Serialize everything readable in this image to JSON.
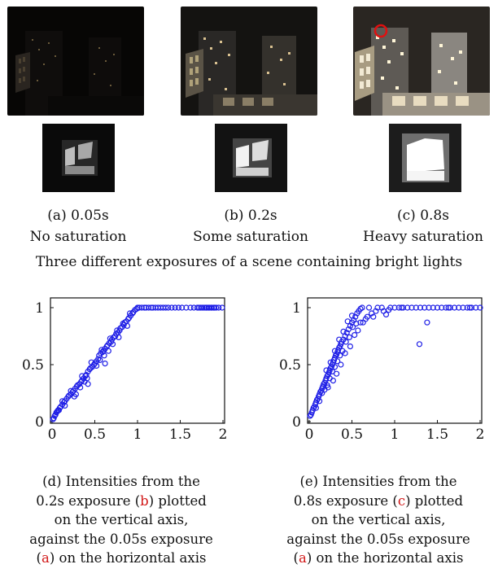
{
  "panels": [
    {
      "label": "(a) 0.05s",
      "desc": "No saturation"
    },
    {
      "label": "(b) 0.2s",
      "desc": "Some saturation"
    },
    {
      "label": "(c) 0.8s",
      "desc": "Heavy saturation"
    }
  ],
  "figure_caption": "Three different exposures of a scene containing bright lights",
  "captions": {
    "d": {
      "pre": "(d) Intensities from the 0.2s exposure (",
      "ref1": "b",
      "mid": ") plotted on the vertical axis, against the 0.05s exposure (",
      "ref2": "a",
      "post": ") on the horizontal axis"
    },
    "e": {
      "pre": "(e) Intensities from the 0.8s exposure (",
      "ref1": "c",
      "mid": ") plotted on the vertical axis, against the 0.05s exposure (",
      "ref2": "a",
      "post": ") on the horizontal axis"
    }
  },
  "colors": {
    "marker": "#1f1fe6",
    "reference": "#d21a1a",
    "highlight_circle": "#e01010"
  },
  "chart_data": [
    {
      "type": "scatter",
      "title": "",
      "xlabel": "",
      "ylabel": "",
      "xlim": [
        0,
        2
      ],
      "ylim": [
        0,
        1
      ],
      "xticks": [
        "0",
        "0.5",
        "1",
        "1.5",
        "2"
      ],
      "yticks": [
        "0",
        "0.5",
        "1"
      ],
      "points": [
        [
          0.01,
          0.02
        ],
        [
          0.02,
          0.03
        ],
        [
          0.03,
          0.05
        ],
        [
          0.04,
          0.06
        ],
        [
          0.05,
          0.08
        ],
        [
          0.06,
          0.09
        ],
        [
          0.07,
          0.1
        ],
        [
          0.08,
          0.1
        ],
        [
          0.09,
          0.12
        ],
        [
          0.1,
          0.13
        ],
        [
          0.12,
          0.15
        ],
        [
          0.14,
          0.17
        ],
        [
          0.15,
          0.18
        ],
        [
          0.17,
          0.2
        ],
        [
          0.19,
          0.22
        ],
        [
          0.2,
          0.23
        ],
        [
          0.22,
          0.24
        ],
        [
          0.24,
          0.26
        ],
        [
          0.25,
          0.27
        ],
        [
          0.27,
          0.29
        ],
        [
          0.29,
          0.31
        ],
        [
          0.3,
          0.32
        ],
        [
          0.32,
          0.33
        ],
        [
          0.34,
          0.35
        ],
        [
          0.35,
          0.36
        ],
        [
          0.37,
          0.38
        ],
        [
          0.39,
          0.4
        ],
        [
          0.4,
          0.41
        ],
        [
          0.42,
          0.44
        ],
        [
          0.44,
          0.46
        ],
        [
          0.45,
          0.47
        ],
        [
          0.47,
          0.48
        ],
        [
          0.49,
          0.5
        ],
        [
          0.5,
          0.51
        ],
        [
          0.52,
          0.53
        ],
        [
          0.54,
          0.55
        ],
        [
          0.55,
          0.58
        ],
        [
          0.57,
          0.6
        ],
        [
          0.59,
          0.61
        ],
        [
          0.6,
          0.62
        ],
        [
          0.62,
          0.64
        ],
        [
          0.64,
          0.66
        ],
        [
          0.65,
          0.67
        ],
        [
          0.67,
          0.69
        ],
        [
          0.69,
          0.7
        ],
        [
          0.7,
          0.72
        ],
        [
          0.72,
          0.74
        ],
        [
          0.74,
          0.75
        ],
        [
          0.75,
          0.77
        ],
        [
          0.77,
          0.78
        ],
        [
          0.79,
          0.8
        ],
        [
          0.8,
          0.82
        ],
        [
          0.82,
          0.83
        ],
        [
          0.84,
          0.85
        ],
        [
          0.85,
          0.87
        ],
        [
          0.87,
          0.88
        ],
        [
          0.89,
          0.9
        ],
        [
          0.9,
          0.91
        ],
        [
          0.92,
          0.93
        ],
        [
          0.94,
          0.95
        ],
        [
          0.95,
          0.96
        ],
        [
          0.97,
          0.98
        ],
        [
          0.99,
          0.99
        ],
        [
          1.0,
          1.0
        ],
        [
          0.15,
          0.14
        ],
        [
          0.22,
          0.27
        ],
        [
          0.28,
          0.24
        ],
        [
          0.33,
          0.3
        ],
        [
          0.38,
          0.35
        ],
        [
          0.41,
          0.38
        ],
        [
          0.46,
          0.52
        ],
        [
          0.52,
          0.49
        ],
        [
          0.56,
          0.54
        ],
        [
          0.58,
          0.63
        ],
        [
          0.61,
          0.58
        ],
        [
          0.66,
          0.62
        ],
        [
          0.68,
          0.73
        ],
        [
          0.71,
          0.68
        ],
        [
          0.76,
          0.8
        ],
        [
          0.78,
          0.74
        ],
        [
          0.83,
          0.86
        ],
        [
          0.88,
          0.84
        ],
        [
          0.91,
          0.95
        ],
        [
          0.62,
          0.51
        ],
        [
          0.42,
          0.33
        ],
        [
          0.35,
          0.4
        ],
        [
          0.26,
          0.22
        ],
        [
          0.12,
          0.18
        ],
        [
          1.02,
          1.0
        ],
        [
          1.05,
          1.0
        ],
        [
          1.08,
          1.0
        ],
        [
          1.1,
          1.0
        ],
        [
          1.13,
          1.0
        ],
        [
          1.16,
          1.0
        ],
        [
          1.18,
          1.0
        ],
        [
          1.21,
          1.0
        ],
        [
          1.24,
          1.0
        ],
        [
          1.27,
          1.0
        ],
        [
          1.3,
          1.0
        ],
        [
          1.33,
          1.0
        ],
        [
          1.36,
          1.0
        ],
        [
          1.4,
          1.0
        ],
        [
          1.44,
          1.0
        ],
        [
          1.48,
          1.0
        ],
        [
          1.52,
          1.0
        ],
        [
          1.57,
          1.0
        ],
        [
          1.62,
          1.0
        ],
        [
          1.66,
          1.0
        ],
        [
          1.7,
          1.0
        ],
        [
          1.72,
          1.0
        ],
        [
          1.74,
          1.0
        ],
        [
          1.76,
          1.0
        ],
        [
          1.78,
          1.0
        ],
        [
          1.8,
          1.0
        ],
        [
          1.81,
          1.0
        ],
        [
          1.83,
          1.0
        ],
        [
          1.84,
          1.0
        ],
        [
          1.86,
          1.0
        ],
        [
          1.87,
          1.0
        ],
        [
          1.89,
          1.0
        ],
        [
          1.9,
          1.0
        ],
        [
          1.92,
          1.0
        ],
        [
          1.95,
          1.0
        ],
        [
          1.99,
          1.0
        ]
      ]
    },
    {
      "type": "scatter",
      "title": "",
      "xlabel": "",
      "ylabel": "",
      "xlim": [
        0,
        2
      ],
      "ylim": [
        0,
        1
      ],
      "xticks": [
        "0",
        "0.5",
        "1",
        "1.5",
        "2"
      ],
      "yticks": [
        "0",
        "0.5",
        "1"
      ],
      "points": [
        [
          0.01,
          0.05
        ],
        [
          0.02,
          0.06
        ],
        [
          0.03,
          0.08
        ],
        [
          0.04,
          0.1
        ],
        [
          0.05,
          0.12
        ],
        [
          0.06,
          0.13
        ],
        [
          0.07,
          0.15
        ],
        [
          0.08,
          0.17
        ],
        [
          0.09,
          0.19
        ],
        [
          0.1,
          0.2
        ],
        [
          0.11,
          0.22
        ],
        [
          0.12,
          0.24
        ],
        [
          0.13,
          0.26
        ],
        [
          0.14,
          0.27
        ],
        [
          0.15,
          0.29
        ],
        [
          0.16,
          0.31
        ],
        [
          0.17,
          0.33
        ],
        [
          0.18,
          0.34
        ],
        [
          0.19,
          0.36
        ],
        [
          0.2,
          0.38
        ],
        [
          0.21,
          0.4
        ],
        [
          0.22,
          0.41
        ],
        [
          0.23,
          0.43
        ],
        [
          0.24,
          0.45
        ],
        [
          0.25,
          0.47
        ],
        [
          0.26,
          0.48
        ],
        [
          0.27,
          0.5
        ],
        [
          0.28,
          0.52
        ],
        [
          0.29,
          0.54
        ],
        [
          0.3,
          0.56
        ],
        [
          0.31,
          0.58
        ],
        [
          0.32,
          0.59
        ],
        [
          0.33,
          0.61
        ],
        [
          0.34,
          0.63
        ],
        [
          0.35,
          0.65
        ],
        [
          0.36,
          0.66
        ],
        [
          0.37,
          0.68
        ],
        [
          0.38,
          0.7
        ],
        [
          0.4,
          0.72
        ],
        [
          0.42,
          0.75
        ],
        [
          0.44,
          0.78
        ],
        [
          0.46,
          0.81
        ],
        [
          0.48,
          0.84
        ],
        [
          0.5,
          0.87
        ],
        [
          0.52,
          0.89
        ],
        [
          0.54,
          0.92
        ],
        [
          0.56,
          0.95
        ],
        [
          0.58,
          0.97
        ],
        [
          0.6,
          0.99
        ],
        [
          0.62,
          1.0
        ],
        [
          0.08,
          0.12
        ],
        [
          0.12,
          0.18
        ],
        [
          0.15,
          0.25
        ],
        [
          0.18,
          0.28
        ],
        [
          0.21,
          0.32
        ],
        [
          0.24,
          0.38
        ],
        [
          0.27,
          0.44
        ],
        [
          0.3,
          0.48
        ],
        [
          0.33,
          0.53
        ],
        [
          0.36,
          0.58
        ],
        [
          0.39,
          0.62
        ],
        [
          0.43,
          0.7
        ],
        [
          0.47,
          0.74
        ],
        [
          0.51,
          0.83
        ],
        [
          0.55,
          0.86
        ],
        [
          0.2,
          0.45
        ],
        [
          0.25,
          0.52
        ],
        [
          0.3,
          0.62
        ],
        [
          0.35,
          0.72
        ],
        [
          0.4,
          0.79
        ],
        [
          0.45,
          0.88
        ],
        [
          0.5,
          0.93
        ],
        [
          0.32,
          0.42
        ],
        [
          0.28,
          0.36
        ],
        [
          0.22,
          0.3
        ],
        [
          0.37,
          0.5
        ],
        [
          0.42,
          0.6
        ],
        [
          0.48,
          0.66
        ],
        [
          0.53,
          0.76
        ],
        [
          0.63,
          0.87
        ],
        [
          0.68,
          0.92
        ],
        [
          0.73,
          0.95
        ],
        [
          0.78,
          0.97
        ],
        [
          0.57,
          0.8
        ],
        [
          0.6,
          0.87
        ],
        [
          0.66,
          0.9
        ],
        [
          0.7,
          1.0
        ],
        [
          0.75,
          0.92
        ],
        [
          0.8,
          1.0
        ],
        [
          0.85,
          1.0
        ],
        [
          0.9,
          0.94
        ],
        [
          0.95,
          1.0
        ],
        [
          1.0,
          1.0
        ],
        [
          1.05,
          1.0
        ],
        [
          1.1,
          1.0
        ],
        [
          1.15,
          1.0
        ],
        [
          1.2,
          1.0
        ],
        [
          1.25,
          1.0
        ],
        [
          1.3,
          1.0
        ],
        [
          1.35,
          1.0
        ],
        [
          1.4,
          1.0
        ],
        [
          1.45,
          1.0
        ],
        [
          1.5,
          1.0
        ],
        [
          1.55,
          1.0
        ],
        [
          1.6,
          1.0
        ],
        [
          1.65,
          1.0
        ],
        [
          1.7,
          1.0
        ],
        [
          1.75,
          1.0
        ],
        [
          1.8,
          1.0
        ],
        [
          1.85,
          1.0
        ],
        [
          1.9,
          1.0
        ],
        [
          1.95,
          1.0
        ],
        [
          2.0,
          1.0
        ],
        [
          1.29,
          0.68
        ],
        [
          1.38,
          0.87
        ],
        [
          0.87,
          0.97
        ],
        [
          0.93,
          0.98
        ],
        [
          1.08,
          1.0
        ],
        [
          1.63,
          1.0
        ],
        [
          1.88,
          1.0
        ]
      ]
    }
  ]
}
